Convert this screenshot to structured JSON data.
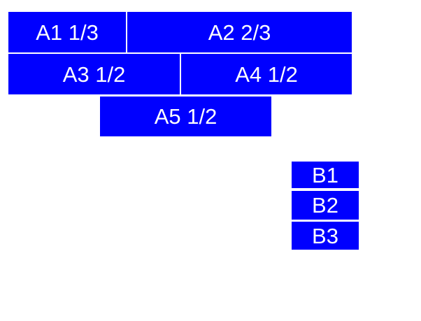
{
  "colors": {
    "box": "#0000ff",
    "text": "#ffffff",
    "background": "#ffffff"
  },
  "blocks": {
    "a1": {
      "label": "A1 1/3"
    },
    "a2": {
      "label": "A2 2/3"
    },
    "a3": {
      "label": "A3 1/2"
    },
    "a4": {
      "label": "A4 1/2"
    },
    "a5": {
      "label": "A5 1/2"
    },
    "b1": {
      "label": "B1"
    },
    "b2": {
      "label": "B2"
    },
    "b3": {
      "label": "B3"
    }
  }
}
